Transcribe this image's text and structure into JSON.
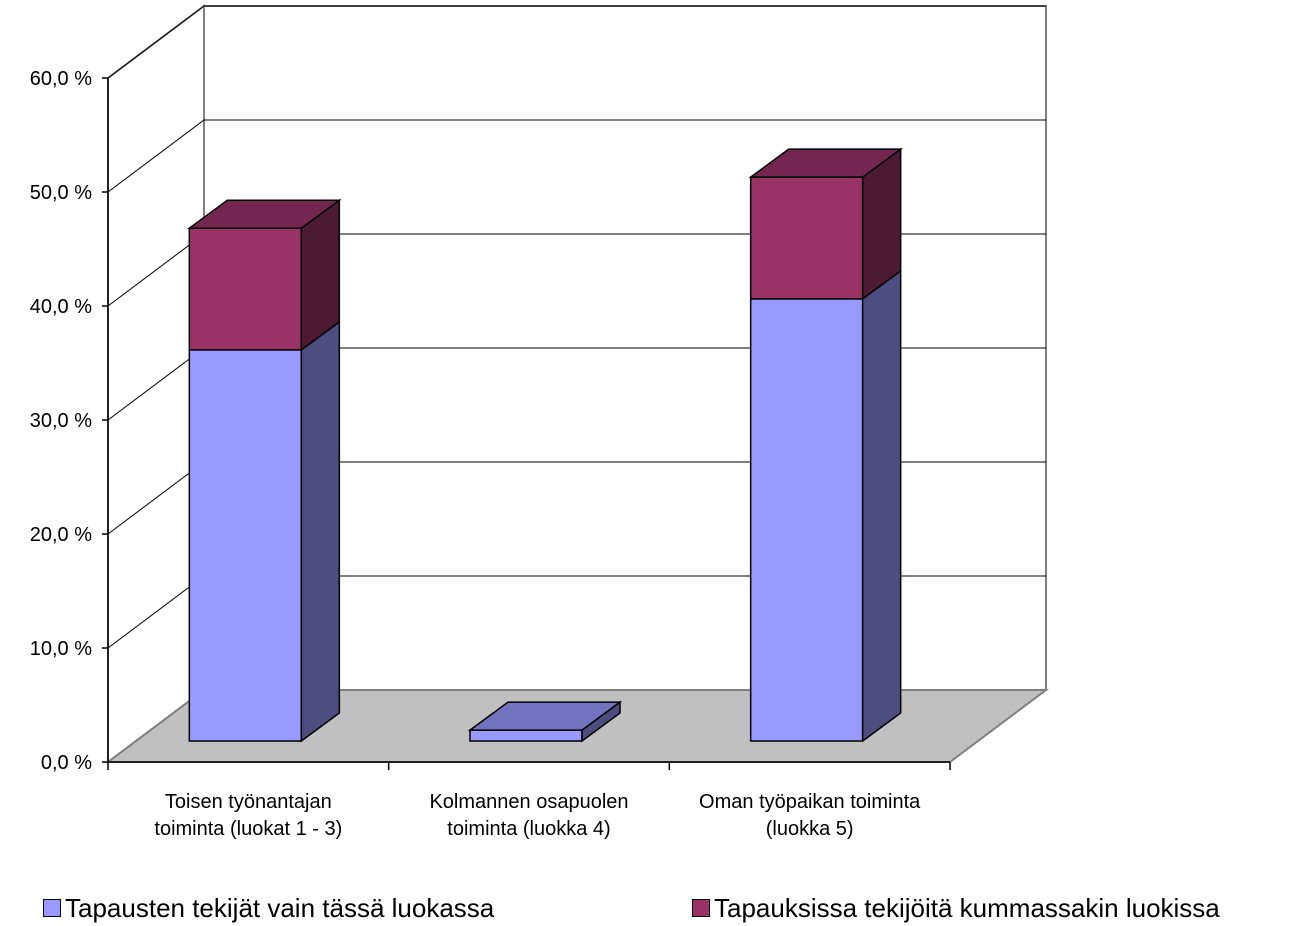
{
  "chart_data": {
    "type": "bar",
    "stacked": true,
    "three_d": true,
    "categories": [
      [
        "Toisen työnantajan",
        "toiminta (luokat 1 - 3)"
      ],
      [
        "Kolmannen osapuolen",
        "toiminta (luokka 4)"
      ],
      [
        "Oman työpaikan toiminta",
        "(luokka 5)"
      ]
    ],
    "series": [
      {
        "name": "Tapausten tekijät vain tässä luokassa",
        "values": [
          36.0,
          1.0,
          40.7
        ],
        "color": "#9999ff",
        "side_color": "#4d4d80",
        "top_color": "#7373bf"
      },
      {
        "name": "Tapauksissa tekijöitä kummassakin luokissa",
        "values": [
          11.2,
          0.0,
          11.2
        ],
        "color": "#993366",
        "side_color": "#4d1a33",
        "top_color": "#732650"
      }
    ],
    "y_ticks": [
      "0,0 %",
      "10,0 %",
      "20,0 %",
      "30,0 %",
      "40,0 %",
      "50,0 %",
      "60,0 %"
    ],
    "ylim": [
      0,
      60
    ],
    "grid": true,
    "legend_position": "bottom",
    "title": "",
    "xlabel": "",
    "ylabel": ""
  }
}
